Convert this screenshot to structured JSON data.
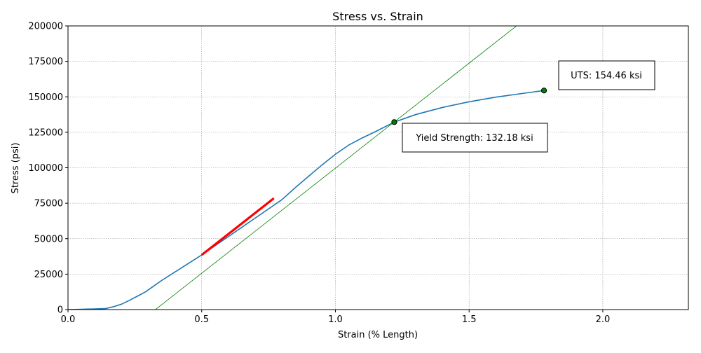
{
  "chart_data": {
    "type": "line",
    "title": "Stress vs. Strain",
    "xlabel": "Strain (% Length)",
    "ylabel": "Stress (psi)",
    "xlim": [
      0,
      2.32
    ],
    "ylim": [
      0,
      200000
    ],
    "grid": true,
    "x_ticks": [
      0.0,
      0.5,
      1.0,
      1.5,
      2.0
    ],
    "x_tick_labels": [
      "0.0",
      "0.5",
      "1.0",
      "1.5",
      "2.0"
    ],
    "y_ticks": [
      0,
      25000,
      50000,
      75000,
      100000,
      125000,
      150000,
      175000,
      200000
    ],
    "y_tick_labels": [
      "0",
      "25000",
      "50000",
      "75000",
      "100000",
      "125000",
      "150000",
      "175000",
      "200000"
    ],
    "colors": {
      "curve": "#1f77b4",
      "linear_fit": "#ff0000",
      "offset_line": "#008000",
      "marker_fill": "#008000",
      "grid": "#999999"
    },
    "series": [
      {
        "role": "stress-strain-curve",
        "points": [
          [
            0.0,
            0
          ],
          [
            0.05,
            200
          ],
          [
            0.1,
            500
          ],
          [
            0.14,
            700
          ],
          [
            0.17,
            2000
          ],
          [
            0.2,
            3800
          ],
          [
            0.23,
            6500
          ],
          [
            0.26,
            9500
          ],
          [
            0.29,
            12500
          ],
          [
            0.32,
            16500
          ],
          [
            0.35,
            20500
          ],
          [
            0.4,
            26500
          ],
          [
            0.45,
            32500
          ],
          [
            0.5,
            38500
          ],
          [
            0.55,
            45000
          ],
          [
            0.6,
            51500
          ],
          [
            0.65,
            58000
          ],
          [
            0.7,
            64500
          ],
          [
            0.75,
            71000
          ],
          [
            0.8,
            77500
          ],
          [
            0.85,
            86000
          ],
          [
            0.9,
            94000
          ],
          [
            0.95,
            102000
          ],
          [
            1.0,
            109500
          ],
          [
            1.05,
            116000
          ],
          [
            1.1,
            121000
          ],
          [
            1.15,
            125500
          ],
          [
            1.22,
            132180
          ],
          [
            1.3,
            137500
          ],
          [
            1.4,
            142500
          ],
          [
            1.5,
            146500
          ],
          [
            1.6,
            149800
          ],
          [
            1.7,
            152400
          ],
          [
            1.78,
            154460
          ]
        ]
      },
      {
        "role": "linear-fit-segment",
        "points": [
          [
            0.5,
            38500
          ],
          [
            0.77,
            78500
          ]
        ]
      },
      {
        "role": "offset-line",
        "points": [
          [
            0.327,
            0
          ],
          [
            1.684,
            201000
          ]
        ]
      }
    ],
    "markers": [
      {
        "role": "yield-point",
        "x": 1.22,
        "y": 132180
      },
      {
        "role": "uts-point",
        "x": 1.78,
        "y": 154460
      }
    ],
    "annotations": [
      {
        "role": "uts-label",
        "text": "UTS: 154.46 ksi"
      },
      {
        "role": "yield-label",
        "text": "Yield Strength: 132.18 ksi"
      }
    ]
  }
}
